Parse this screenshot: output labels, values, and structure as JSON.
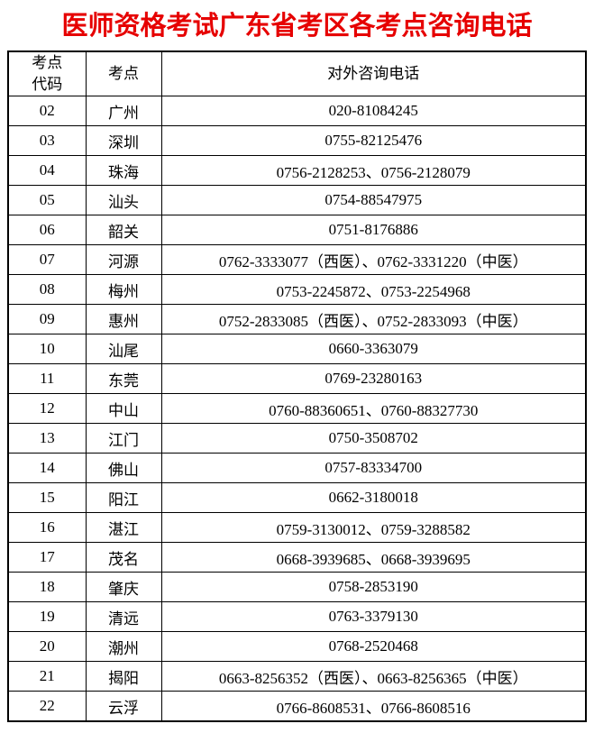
{
  "title": "医师资格考试广东省考区各考点咨询电话",
  "title_color": "#e60000",
  "table": {
    "headers": {
      "code_line1": "考点",
      "code_line2": "代码",
      "site": "考点",
      "phone": "对外咨询电话"
    },
    "rows": [
      {
        "code": "02",
        "site": "广州",
        "phone": "020-81084245"
      },
      {
        "code": "03",
        "site": "深圳",
        "phone": "0755-82125476"
      },
      {
        "code": "04",
        "site": "珠海",
        "phone": "0756-2128253、0756-2128079"
      },
      {
        "code": "05",
        "site": "汕头",
        "phone": "0754-88547975"
      },
      {
        "code": "06",
        "site": "韶关",
        "phone": "0751-8176886"
      },
      {
        "code": "07",
        "site": "河源",
        "phone": "0762-3333077（西医）、0762-3331220（中医）"
      },
      {
        "code": "08",
        "site": "梅州",
        "phone": "0753-2245872、0753-2254968"
      },
      {
        "code": "09",
        "site": "惠州",
        "phone": "0752-2833085（西医）、0752-2833093（中医）"
      },
      {
        "code": "10",
        "site": "汕尾",
        "phone": "0660-3363079"
      },
      {
        "code": "11",
        "site": "东莞",
        "phone": "0769-23280163"
      },
      {
        "code": "12",
        "site": "中山",
        "phone": "0760-88360651、0760-88327730"
      },
      {
        "code": "13",
        "site": "江门",
        "phone": "0750-3508702"
      },
      {
        "code": "14",
        "site": "佛山",
        "phone": "0757-83334700"
      },
      {
        "code": "15",
        "site": "阳江",
        "phone": "0662-3180018"
      },
      {
        "code": "16",
        "site": "湛江",
        "phone": "0759-3130012、0759-3288582"
      },
      {
        "code": "17",
        "site": "茂名",
        "phone": "0668-3939685、0668-3939695"
      },
      {
        "code": "18",
        "site": "肇庆",
        "phone": "0758-2853190"
      },
      {
        "code": "19",
        "site": "清远",
        "phone": "0763-3379130"
      },
      {
        "code": "20",
        "site": "潮州",
        "phone": "0768-2520468"
      },
      {
        "code": "21",
        "site": "揭阳",
        "phone": "0663-8256352（西医）、0663-8256365（中医）"
      },
      {
        "code": "22",
        "site": "云浮",
        "phone": "0766-8608531、0766-8608516"
      }
    ]
  }
}
